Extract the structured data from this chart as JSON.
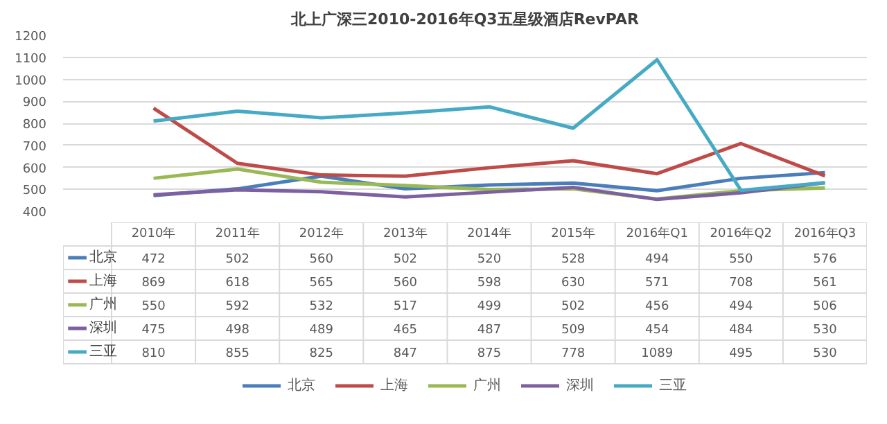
{
  "chart_data": {
    "type": "line",
    "title": "北上广深三2010-2016年Q3五星级酒店RevPAR",
    "categories": [
      "2010年",
      "2011年",
      "2012年",
      "2013年",
      "2014年",
      "2015年",
      "2016年Q1",
      "2016年Q2",
      "2016年Q3"
    ],
    "series": [
      {
        "name": "北京",
        "color": "#4a7ebb",
        "values": [
          472,
          502,
          560,
          502,
          520,
          528,
          494,
          550,
          576
        ]
      },
      {
        "name": "上海",
        "color": "#be4b48",
        "values": [
          869,
          618,
          565,
          560,
          598,
          630,
          571,
          708,
          561
        ]
      },
      {
        "name": "广州",
        "color": "#98b954",
        "values": [
          550,
          592,
          532,
          517,
          499,
          502,
          456,
          494,
          506
        ]
      },
      {
        "name": "深圳",
        "color": "#7d60a0",
        "values": [
          475,
          498,
          489,
          465,
          487,
          509,
          454,
          484,
          530
        ]
      },
      {
        "name": "三亚",
        "color": "#46aac5",
        "values": [
          810,
          855,
          825,
          847,
          875,
          778,
          1089,
          495,
          530
        ]
      }
    ],
    "ylim": [
      400,
      1200
    ],
    "yticks": [
      400,
      500,
      600,
      700,
      800,
      900,
      1000,
      1100,
      1200
    ],
    "grid": "y",
    "legend": "bottom",
    "data_labels": true
  }
}
